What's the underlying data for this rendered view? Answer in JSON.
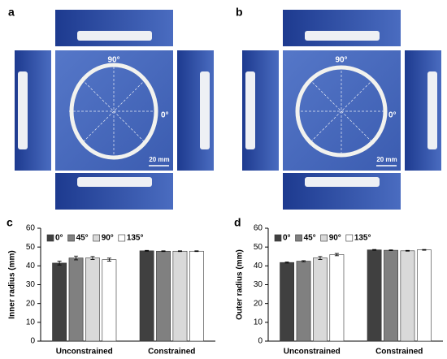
{
  "photos": [
    {
      "panel": "a",
      "top_label": "90°",
      "right_label": "0°",
      "scale_label": "20 mm"
    },
    {
      "panel": "b",
      "top_label": "90°",
      "right_label": "0°",
      "scale_label": "20 mm"
    }
  ],
  "chart_data": [
    {
      "type": "bar",
      "panel": "c",
      "y_label": "Inner radius (mm)",
      "categories": [
        "Unconstrained",
        "Constrained"
      ],
      "series": [
        {
          "name": "0°",
          "color": "#404040",
          "values": [
            41.5,
            48.0
          ],
          "errors": [
            1.0,
            0.2
          ]
        },
        {
          "name": "45°",
          "color": "#808080",
          "values": [
            44.2,
            47.8
          ],
          "errors": [
            1.0,
            0.2
          ]
        },
        {
          "name": "90°",
          "color": "#d9d9d9",
          "values": [
            44.2,
            47.8
          ],
          "errors": [
            0.8,
            0.2
          ]
        },
        {
          "name": "135°",
          "color": "#ffffff",
          "values": [
            43.3,
            47.8
          ],
          "errors": [
            0.8,
            0.2
          ]
        }
      ],
      "ylim": [
        0,
        60
      ],
      "yticks": [
        0,
        10,
        20,
        30,
        40,
        50,
        60
      ],
      "legend": "upper left"
    },
    {
      "type": "bar",
      "panel": "d",
      "y_label": "Outer radius (mm)",
      "categories": [
        "Unconstrained",
        "Constrained"
      ],
      "series": [
        {
          "name": "0°",
          "color": "#404040",
          "values": [
            41.8,
            48.5
          ],
          "errors": [
            0.3,
            0.2
          ]
        },
        {
          "name": "45°",
          "color": "#808080",
          "values": [
            42.5,
            48.3
          ],
          "errors": [
            0.3,
            0.2
          ]
        },
        {
          "name": "90°",
          "color": "#d9d9d9",
          "values": [
            44.2,
            48.0
          ],
          "errors": [
            0.8,
            0.2
          ]
        },
        {
          "name": "135°",
          "color": "#ffffff",
          "values": [
            46.0,
            48.5
          ],
          "errors": [
            0.6,
            0.2
          ]
        }
      ],
      "ylim": [
        0,
        60
      ],
      "yticks": [
        0,
        10,
        20,
        30,
        40,
        50,
        60
      ],
      "legend": "upper left"
    }
  ]
}
